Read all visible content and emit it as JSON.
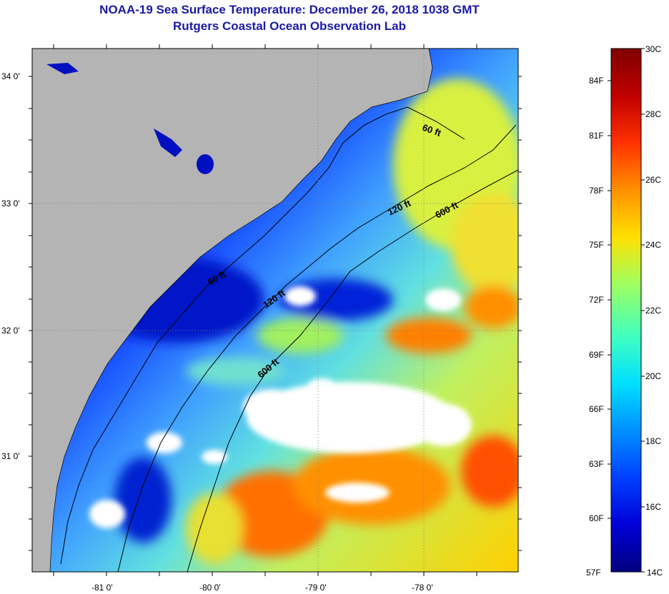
{
  "header": {
    "title": "NOAA-19 Sea Surface Temperature:  December 26, 2018 1038 GMT",
    "subtitle": "Rutgers Coastal Ocean Observation Lab"
  },
  "axes": {
    "lat_labels": [
      "34 0'",
      "33 0'",
      "32 0'",
      "31 0'"
    ],
    "lon_labels": [
      "-81 0'",
      "-80 0'",
      "-79 0'",
      "-78 0'"
    ]
  },
  "isobaths": [
    "60 ft",
    "120 ft",
    "600 ft",
    "60 ft",
    "120 ft",
    "600 ft"
  ],
  "colorbar": {
    "fahrenheit": [
      "84F",
      "81F",
      "78F",
      "75F",
      "72F",
      "69F",
      "66F",
      "63F",
      "60F",
      "57F"
    ],
    "celsius": [
      "30C",
      "28C",
      "26C",
      "24C",
      "22C",
      "20C",
      "18C",
      "16C",
      "14C"
    ],
    "colors": [
      "#00007f",
      "#0000d8",
      "#0040ff",
      "#0090ff",
      "#00e0ff",
      "#40ffc0",
      "#a0ff60",
      "#ffe000",
      "#ff9000",
      "#ff3000",
      "#c00000",
      "#7f0000"
    ]
  },
  "colors": {
    "land": "#b4b4b4",
    "cloud": "#ffffff",
    "title": "#1a1aa6"
  }
}
